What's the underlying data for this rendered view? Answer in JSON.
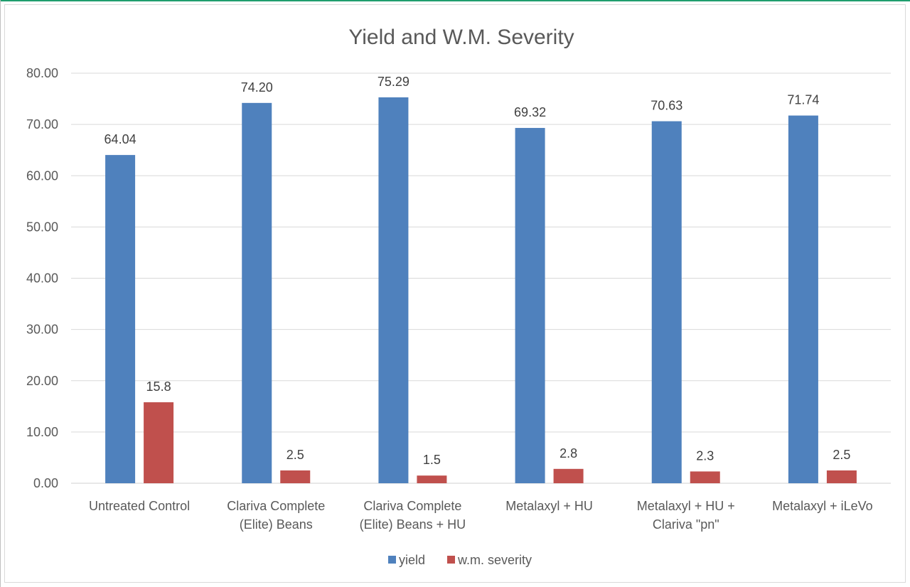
{
  "chart_data": {
    "type": "bar",
    "title": "Yield and W.M. Severity",
    "categories": [
      [
        "Untreated Control"
      ],
      [
        "Clariva Complete",
        "(Elite) Beans"
      ],
      [
        "Clariva Complete",
        "(Elite) Beans + HU"
      ],
      [
        "Metalaxyl + HU"
      ],
      [
        "Metalaxyl + HU +",
        "Clariva \"pn\""
      ],
      [
        "Metalaxyl + iLeVo"
      ]
    ],
    "series": [
      {
        "name": "yield",
        "color": "#4f81bd",
        "values": [
          64.04,
          74.2,
          75.29,
          69.32,
          70.63,
          71.74
        ],
        "labels": [
          "64.04",
          "74.20",
          "75.29",
          "69.32",
          "70.63",
          "71.74"
        ]
      },
      {
        "name": "w.m. severity",
        "color": "#c0504d",
        "values": [
          15.8,
          2.5,
          1.5,
          2.8,
          2.3,
          2.5
        ],
        "labels": [
          "15.8",
          "2.5",
          "1.5",
          "2.8",
          "2.3",
          "2.5"
        ]
      }
    ],
    "ylim": [
      0,
      80
    ],
    "yticks": [
      "0.00",
      "10.00",
      "20.00",
      "30.00",
      "40.00",
      "50.00",
      "60.00",
      "70.00",
      "80.00"
    ],
    "grid": true,
    "legend": "bottom-center"
  }
}
